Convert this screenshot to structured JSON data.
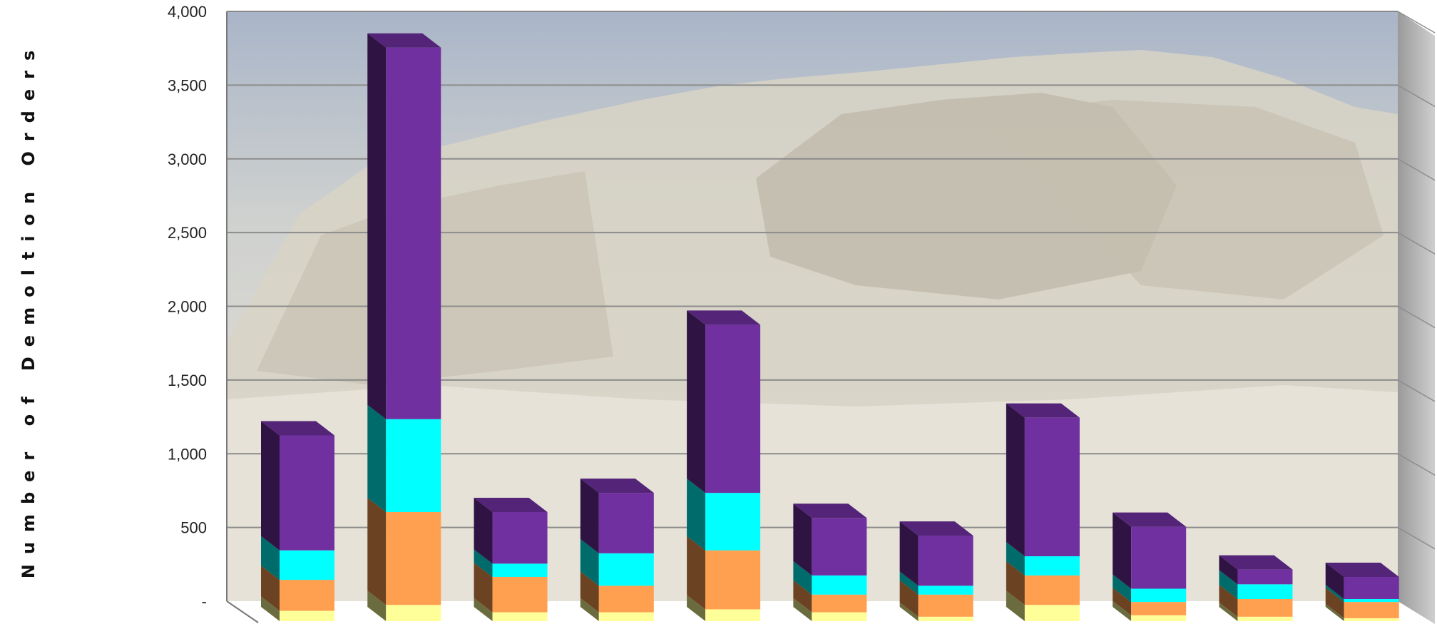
{
  "chart_data": {
    "type": "bar",
    "stacked": true,
    "three_d": true,
    "ylabel": "Number of Demoltion Orders",
    "xlabel": "",
    "ylim": [
      0,
      4000
    ],
    "yticks": [
      0,
      500,
      1000,
      1500,
      2000,
      2500,
      3000,
      3500,
      4000
    ],
    "ytick_labels": [
      "-",
      "500",
      "1,000",
      "1,500",
      "2,000",
      "2,500",
      "3,000",
      "3,500",
      "4,000"
    ],
    "grid": true,
    "legend": "none",
    "background": "photo of demolished building rubble",
    "categories": [
      "",
      "",
      "",
      "",
      "",
      "",
      "",
      "",
      "",
      "",
      ""
    ],
    "series": [
      {
        "color": "#ffff99",
        "values": [
          70,
          110,
          60,
          60,
          80,
          60,
          30,
          110,
          40,
          30,
          20
        ]
      },
      {
        "color": "#ffa050",
        "values": [
          210,
          630,
          240,
          180,
          400,
          120,
          150,
          200,
          90,
          120,
          110
        ]
      },
      {
        "color": "#00ffff",
        "values": [
          200,
          630,
          90,
          220,
          390,
          130,
          60,
          130,
          90,
          100,
          20
        ]
      },
      {
        "color": "#7030a0",
        "values": [
          780,
          2520,
          350,
          410,
          1140,
          390,
          340,
          940,
          420,
          100,
          150
        ]
      }
    ]
  }
}
